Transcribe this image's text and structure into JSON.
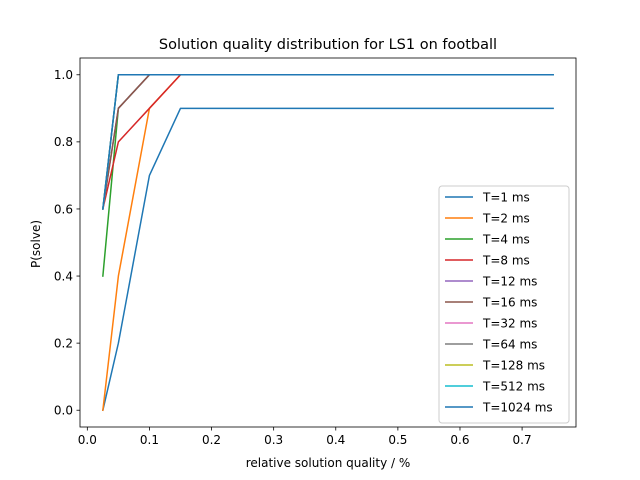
{
  "chart_data": {
    "type": "line",
    "title": "Solution quality distribution for LS1 on football",
    "xlabel": "relative solution quality / %",
    "ylabel": "P(solve)",
    "xlim": [
      -0.0118,
      0.7868
    ],
    "ylim": [
      -0.05,
      1.05
    ],
    "x_ticks": [
      0.0,
      0.1,
      0.2,
      0.3,
      0.4,
      0.5,
      0.6,
      0.7
    ],
    "x_tick_labels": [
      "0.0",
      "0.1",
      "0.2",
      "0.3",
      "0.4",
      "0.5",
      "0.6",
      "0.7"
    ],
    "y_ticks": [
      0.0,
      0.2,
      0.4,
      0.6,
      0.8,
      1.0
    ],
    "y_tick_labels": [
      "0.0",
      "0.2",
      "0.4",
      "0.6",
      "0.8",
      "1.0"
    ],
    "grid": false,
    "legend_position": "lower-right",
    "series": [
      {
        "name": "T=1 ms",
        "color": "#1f77b4",
        "x": [
          0.025,
          0.05,
          0.1,
          0.15,
          0.75
        ],
        "y": [
          0.0,
          0.2,
          0.7,
          0.9,
          0.9
        ]
      },
      {
        "name": "T=2 ms",
        "color": "#ff7f0e",
        "x": [
          0.025,
          0.05,
          0.1,
          0.15,
          0.75
        ],
        "y": [
          0.0,
          0.4,
          0.9,
          1.0,
          1.0
        ]
      },
      {
        "name": "T=4 ms",
        "color": "#2ca02c",
        "x": [
          0.025,
          0.05,
          0.1,
          0.15,
          0.75
        ],
        "y": [
          0.4,
          0.9,
          1.0,
          1.0,
          1.0
        ]
      },
      {
        "name": "T=8 ms",
        "color": "#d62728",
        "x": [
          0.025,
          0.05,
          0.1,
          0.15,
          0.75
        ],
        "y": [
          0.6,
          0.8,
          0.9,
          1.0,
          1.0
        ]
      },
      {
        "name": "T=12 ms",
        "color": "#9467bd",
        "x": [
          0.025,
          0.05,
          0.1,
          0.15,
          0.75
        ],
        "y": [
          0.6,
          0.9,
          1.0,
          1.0,
          1.0
        ]
      },
      {
        "name": "T=16 ms",
        "color": "#8c564b",
        "x": [
          0.025,
          0.05,
          0.1,
          0.15,
          0.75
        ],
        "y": [
          0.6,
          0.9,
          1.0,
          1.0,
          1.0
        ]
      },
      {
        "name": "T=32 ms",
        "color": "#e377c2",
        "x": [
          0.025,
          0.05,
          0.1,
          0.15,
          0.75
        ],
        "y": [
          0.6,
          1.0,
          1.0,
          1.0,
          1.0
        ]
      },
      {
        "name": "T=64 ms",
        "color": "#7f7f7f",
        "x": [
          0.025,
          0.05,
          0.1,
          0.15,
          0.75
        ],
        "y": [
          0.6,
          1.0,
          1.0,
          1.0,
          1.0
        ]
      },
      {
        "name": "T=128 ms",
        "color": "#bcbd22",
        "x": [
          0.025,
          0.05,
          0.1,
          0.15,
          0.75
        ],
        "y": [
          0.6,
          1.0,
          1.0,
          1.0,
          1.0
        ]
      },
      {
        "name": "T=512 ms",
        "color": "#17becf",
        "x": [
          0.025,
          0.05,
          0.1,
          0.15,
          0.75
        ],
        "y": [
          0.6,
          1.0,
          1.0,
          1.0,
          1.0
        ]
      },
      {
        "name": "T=1024 ms",
        "color": "#1f77b4",
        "x": [
          0.025,
          0.05,
          0.1,
          0.15,
          0.75
        ],
        "y": [
          0.6,
          1.0,
          1.0,
          1.0,
          1.0
        ]
      }
    ]
  }
}
